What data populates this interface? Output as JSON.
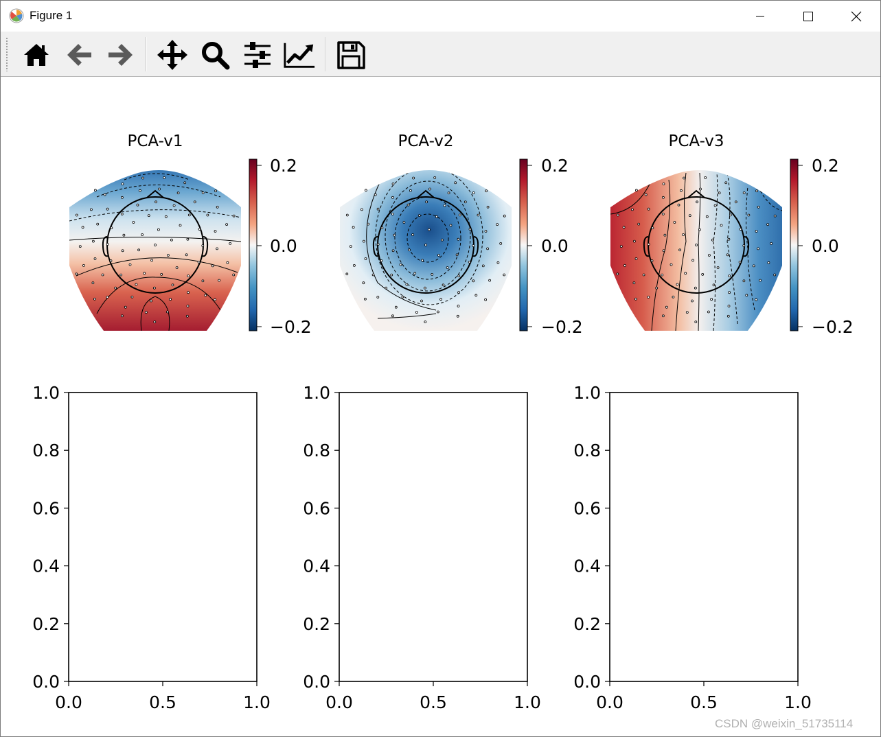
{
  "window": {
    "title": "Figure 1",
    "controls": [
      "minimize",
      "maximize",
      "close"
    ]
  },
  "toolbar": {
    "tools": [
      {
        "name": "home-icon",
        "label": "Home"
      },
      {
        "name": "back-icon",
        "label": "Back"
      },
      {
        "name": "forward-icon",
        "label": "Forward"
      },
      {
        "name": "pan-icon",
        "label": "Pan"
      },
      {
        "name": "zoom-icon",
        "label": "Zoom"
      },
      {
        "name": "subplots-icon",
        "label": "Subplots"
      },
      {
        "name": "customize-icon",
        "label": "Customize"
      },
      {
        "name": "save-icon",
        "label": "Save"
      }
    ]
  },
  "figure": {
    "topomaps": [
      {
        "title": "PCA-v1",
        "pattern": "front-negative back-positive"
      },
      {
        "title": "PCA-v2",
        "pattern": "central-negative"
      },
      {
        "title": "PCA-v3",
        "pattern": "left-positive right-negative"
      }
    ],
    "colorbar": {
      "ticks": [
        "0.2",
        "0.0",
        "−0.2"
      ],
      "colormap": "RdBu_r",
      "vmin": -0.2,
      "vmax": 0.2
    }
  },
  "chart_data": [
    {
      "type": "scatter",
      "title": "",
      "x": [],
      "y": [],
      "xlim": [
        0.0,
        1.0
      ],
      "ylim": [
        0.0,
        1.0
      ],
      "xticks": [
        "0.0",
        "0.5",
        "1.0"
      ],
      "yticks": [
        "0.0",
        "0.2",
        "0.4",
        "0.6",
        "0.8",
        "1.0"
      ]
    },
    {
      "type": "scatter",
      "title": "",
      "x": [],
      "y": [],
      "xlim": [
        0.0,
        1.0
      ],
      "ylim": [
        0.0,
        1.0
      ],
      "xticks": [
        "0.0",
        "0.5",
        "1.0"
      ],
      "yticks": [
        "0.0",
        "0.2",
        "0.4",
        "0.6",
        "0.8",
        "1.0"
      ]
    },
    {
      "type": "scatter",
      "title": "",
      "x": [],
      "y": [],
      "xlim": [
        0.0,
        1.0
      ],
      "ylim": [
        0.0,
        1.0
      ],
      "xticks": [
        "0.0",
        "0.5",
        "1.0"
      ],
      "yticks": [
        "0.0",
        "0.2",
        "0.4",
        "0.6",
        "0.8",
        "1.0"
      ]
    }
  ],
  "watermark": "CSDN @weixin_51735114"
}
